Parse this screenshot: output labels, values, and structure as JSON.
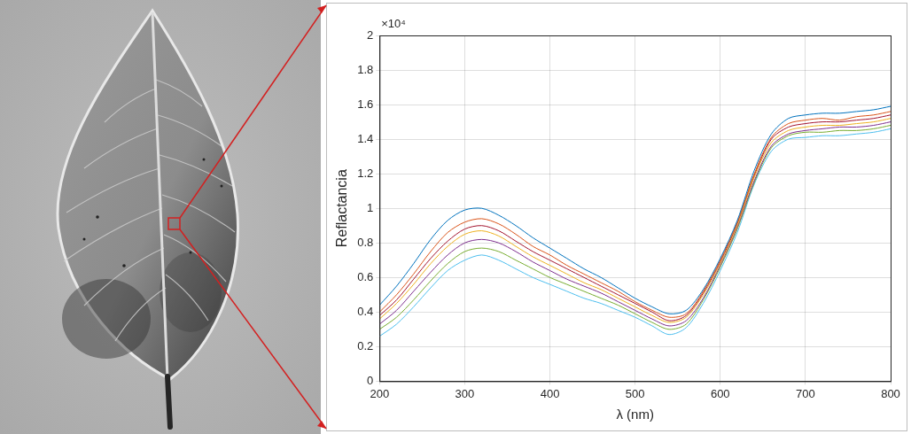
{
  "chart_data": {
    "type": "line",
    "x_label": "λ (nm)",
    "y_label": "Reflactancia",
    "annotations": [
      "×10⁴"
    ],
    "x": [
      200,
      220,
      240,
      260,
      280,
      300,
      320,
      340,
      360,
      380,
      400,
      420,
      440,
      460,
      480,
      500,
      520,
      540,
      560,
      580,
      600,
      620,
      640,
      660,
      680,
      700,
      720,
      740,
      760,
      780,
      800
    ],
    "series": [
      {
        "color": "#0072BD",
        "values": [
          0.44,
          0.55,
          0.68,
          0.82,
          0.93,
          0.99,
          1.0,
          0.96,
          0.9,
          0.83,
          0.77,
          0.71,
          0.65,
          0.6,
          0.54,
          0.48,
          0.43,
          0.39,
          0.41,
          0.53,
          0.71,
          0.93,
          1.22,
          1.43,
          1.52,
          1.54,
          1.55,
          1.55,
          1.56,
          1.57,
          1.59
        ]
      },
      {
        "color": "#D95319",
        "values": [
          0.4,
          0.5,
          0.62,
          0.75,
          0.86,
          0.92,
          0.94,
          0.91,
          0.85,
          0.78,
          0.73,
          0.67,
          0.62,
          0.57,
          0.52,
          0.46,
          0.41,
          0.37,
          0.39,
          0.52,
          0.7,
          0.92,
          1.2,
          1.41,
          1.49,
          1.51,
          1.52,
          1.51,
          1.53,
          1.54,
          1.56
        ]
      },
      {
        "color": "#EDB120",
        "values": [
          0.36,
          0.45,
          0.56,
          0.68,
          0.78,
          0.85,
          0.87,
          0.84,
          0.78,
          0.72,
          0.67,
          0.62,
          0.57,
          0.53,
          0.48,
          0.43,
          0.38,
          0.34,
          0.37,
          0.5,
          0.68,
          0.9,
          1.18,
          1.38,
          1.45,
          1.47,
          1.48,
          1.48,
          1.49,
          1.5,
          1.52
        ]
      },
      {
        "color": "#7E2F8E",
        "values": [
          0.33,
          0.41,
          0.52,
          0.63,
          0.73,
          0.8,
          0.82,
          0.8,
          0.75,
          0.69,
          0.64,
          0.59,
          0.55,
          0.51,
          0.46,
          0.41,
          0.36,
          0.32,
          0.35,
          0.48,
          0.67,
          0.89,
          1.16,
          1.36,
          1.43,
          1.45,
          1.46,
          1.47,
          1.47,
          1.48,
          1.5
        ]
      },
      {
        "color": "#77AC30",
        "values": [
          0.3,
          0.37,
          0.47,
          0.58,
          0.68,
          0.75,
          0.77,
          0.75,
          0.7,
          0.65,
          0.6,
          0.56,
          0.52,
          0.48,
          0.44,
          0.39,
          0.34,
          0.3,
          0.33,
          0.47,
          0.66,
          0.88,
          1.15,
          1.35,
          1.42,
          1.44,
          1.44,
          1.45,
          1.45,
          1.46,
          1.48
        ]
      },
      {
        "color": "#4DBEEE",
        "values": [
          0.26,
          0.33,
          0.43,
          0.54,
          0.64,
          0.7,
          0.73,
          0.7,
          0.65,
          0.6,
          0.56,
          0.52,
          0.48,
          0.45,
          0.41,
          0.37,
          0.32,
          0.27,
          0.31,
          0.45,
          0.64,
          0.86,
          1.14,
          1.33,
          1.4,
          1.41,
          1.42,
          1.42,
          1.43,
          1.44,
          1.46
        ]
      },
      {
        "color": "#A2142F",
        "values": [
          0.38,
          0.47,
          0.59,
          0.71,
          0.81,
          0.88,
          0.9,
          0.87,
          0.81,
          0.75,
          0.7,
          0.65,
          0.6,
          0.55,
          0.5,
          0.45,
          0.4,
          0.35,
          0.38,
          0.51,
          0.69,
          0.91,
          1.19,
          1.4,
          1.47,
          1.49,
          1.5,
          1.5,
          1.51,
          1.52,
          1.54
        ]
      }
    ],
    "xlim": [
      200,
      800
    ],
    "xticks": [
      200,
      300,
      400,
      500,
      600,
      700,
      800
    ],
    "ylim": [
      0,
      2
    ],
    "yticks": [
      0,
      0.2,
      0.4,
      0.6,
      0.8,
      1,
      1.2,
      1.4,
      1.6,
      1.8,
      2
    ],
    "grid": true
  }
}
